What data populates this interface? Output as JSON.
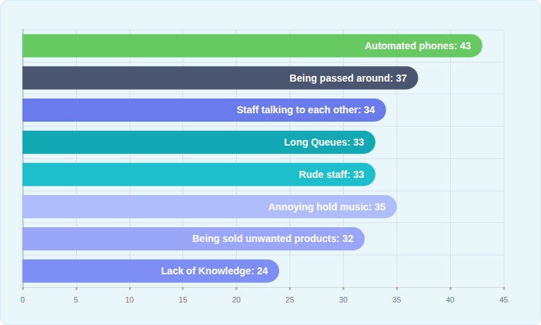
{
  "chart_data": {
    "type": "bar",
    "orientation": "horizontal",
    "categories": [
      "Automated phones",
      "Being passed around",
      "Staff talking to each other",
      "Long Queues",
      "Rude staff",
      "Annoying hold music",
      "Being sold unwanted products",
      "Lack of Knowledge"
    ],
    "values": [
      43,
      37,
      34,
      33,
      33,
      35,
      32,
      24
    ],
    "value_labels": [
      "Automated phones: 43",
      "Being passed around: 37",
      "Staff talking to each other: 34",
      "Long Queues: 33",
      "Rude staff: 33",
      "Annoying hold music: 35",
      "Being sold unwanted products: 32",
      "Lack of Knowledge: 24"
    ],
    "colors": [
      "#66c962",
      "#4a5670",
      "#6a7cec",
      "#13a9b4",
      "#1dbfcc",
      "#b0bdfd",
      "#9aa6f8",
      "#7d8ef4"
    ],
    "xlim": [
      0,
      45
    ],
    "xticks": [
      0,
      5,
      10,
      15,
      20,
      25,
      30,
      35,
      40,
      45
    ],
    "grid": true,
    "data_labels": true,
    "tick_labels": "x"
  }
}
